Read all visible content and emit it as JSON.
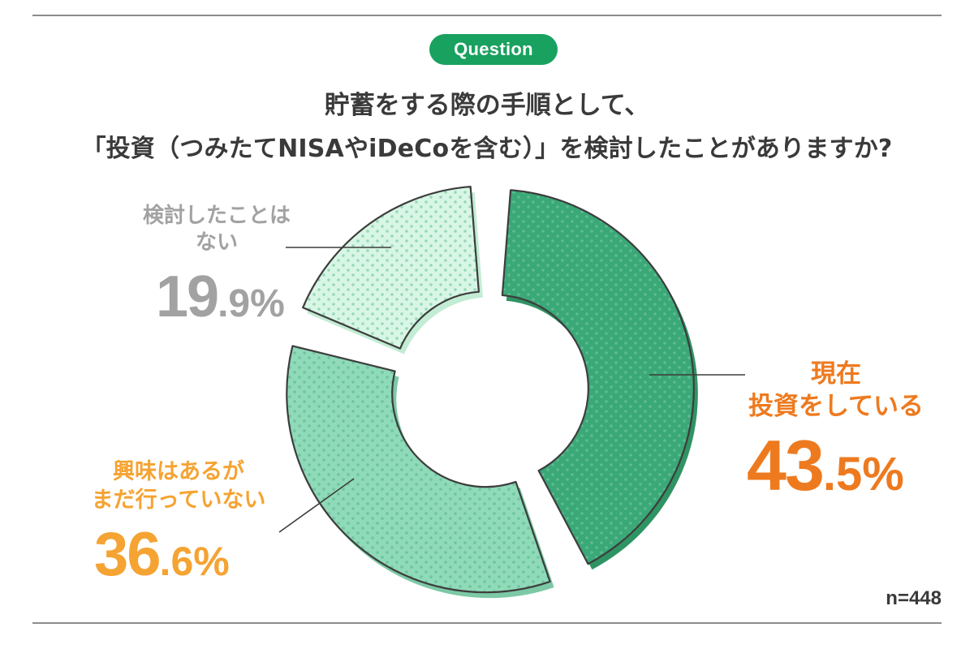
{
  "badge": "Question",
  "title": {
    "line1": "貯蓄をする際の手順として、",
    "line2": "「投資（つみたてNISAやiDeCoを含む）」を検討したことがありますか?"
  },
  "sample_size": "n=448",
  "chart_data": {
    "type": "pie",
    "variant": "donut",
    "start_angle_deg": 0,
    "direction": "clockwise",
    "slices": [
      {
        "label": "現在投資をしている",
        "label_lines": [
          "現在",
          "投資をしている"
        ],
        "value": 43.5,
        "pct_int": "43",
        "pct_dec": ".5%",
        "fill": "#3aa877",
        "dot": "#5ebb91",
        "shadow": "#2f9463",
        "label_color": "#ee7a1f"
      },
      {
        "label": "興味はあるがまだ行っていない",
        "label_lines": [
          "興味はあるが",
          "まだ行っていない"
        ],
        "value": 36.6,
        "pct_int": "36",
        "pct_dec": ".6%",
        "fill": "#8fdab8",
        "dot": "#6fc49f",
        "shadow": "#7cc9a6",
        "label_color": "#f5a332"
      },
      {
        "label": "検討したことはない",
        "label_lines": [
          "検討したことは",
          "ない"
        ],
        "value": 19.9,
        "pct_int": "19",
        "pct_dec": ".9%",
        "fill": "#d8f6e5",
        "dot": "#97d9b6",
        "shadow": "#c2ecd4",
        "label_color": "#a2a2a2"
      }
    ]
  }
}
